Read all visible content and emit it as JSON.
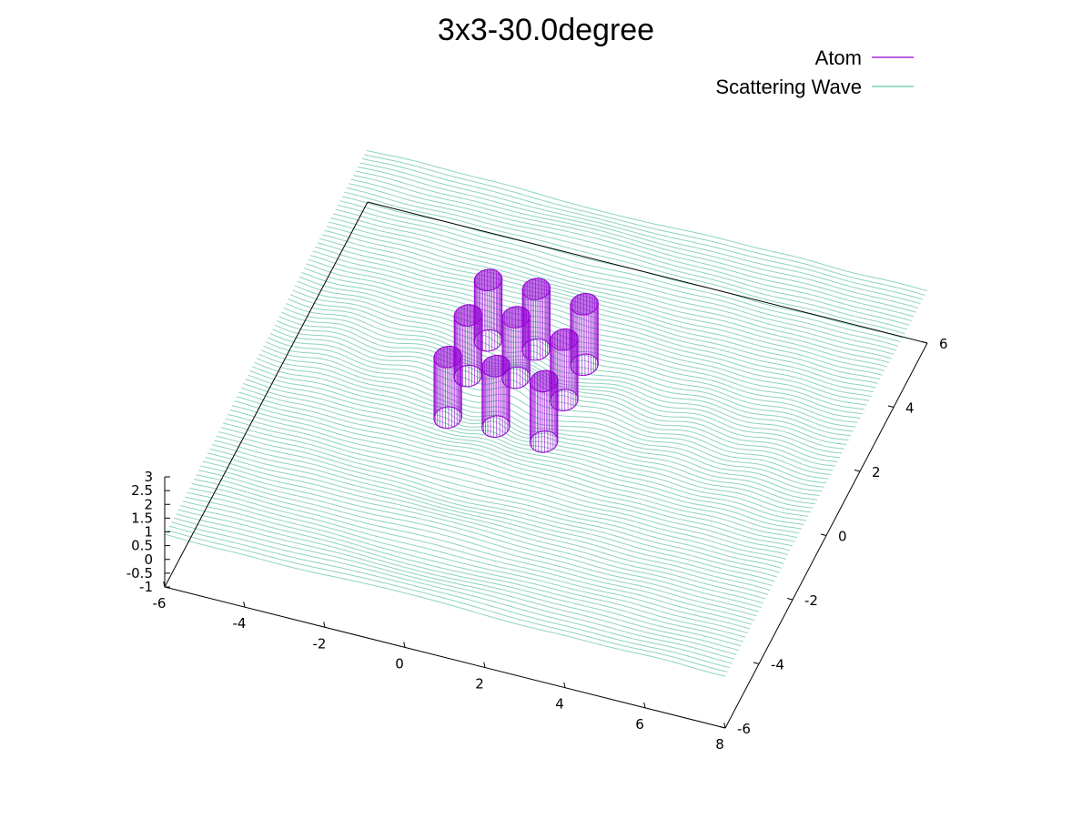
{
  "chart_data": {
    "type": "surface",
    "title": "3x3-30.0degree",
    "legend_position": "top-right",
    "series": [
      {
        "name": "Atom",
        "color": "#9400d3",
        "kind": "cylinders"
      },
      {
        "name": "Scattering Wave",
        "color": "#009e73",
        "kind": "surface"
      }
    ],
    "xlim": [
      -6,
      8
    ],
    "ylim": [
      -6,
      6
    ],
    "zlim": [
      -1,
      3
    ],
    "x_ticks": [
      "-6",
      "-4",
      "-2",
      "0",
      "2",
      "4",
      "6",
      "8"
    ],
    "y_ticks": [
      "-6",
      "-4",
      "-2",
      "0",
      "2",
      "4",
      "6"
    ],
    "z_ticks": [
      "3",
      "2.5",
      "2",
      "1.5",
      "1",
      "0.5",
      "0",
      "-0.5",
      "-1"
    ],
    "atoms": [
      {
        "x": -1.2,
        "y": 1.8
      },
      {
        "x": 0.0,
        "y": 1.8
      },
      {
        "x": 1.2,
        "y": 1.8
      },
      {
        "x": -1.2,
        "y": 0.6
      },
      {
        "x": 0.0,
        "y": 0.6
      },
      {
        "x": 1.2,
        "y": 0.6
      },
      {
        "x": -1.2,
        "y": -0.6
      },
      {
        "x": 0.0,
        "y": -0.6
      },
      {
        "x": 1.2,
        "y": -0.6
      }
    ],
    "grid": false
  }
}
